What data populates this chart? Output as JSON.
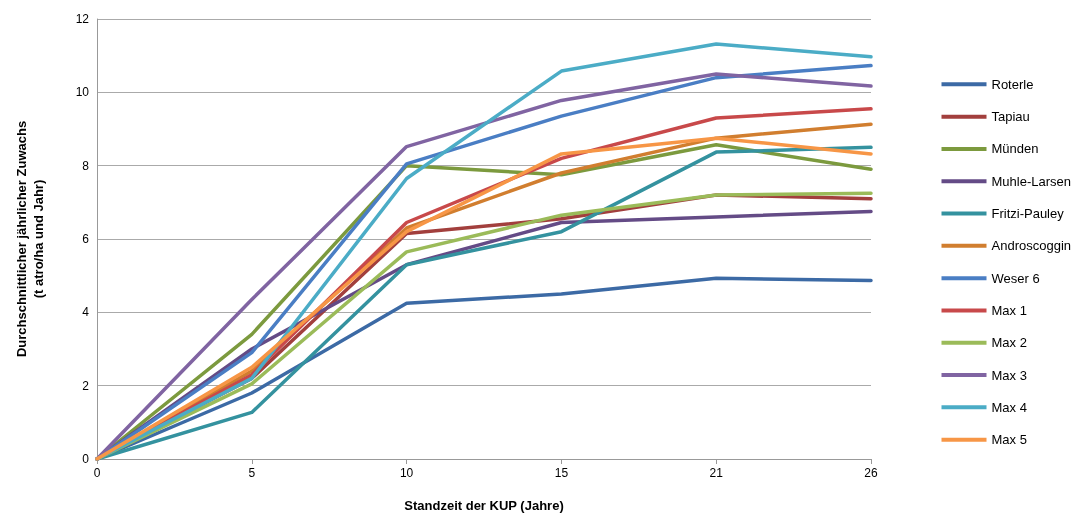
{
  "chart_data": {
    "type": "line",
    "xlabel": "Standzeit der KUP (Jahre)",
    "ylabel": "Durchschnittlicher jährlicher Zuwachs\n(t atro/ha und Jahr)",
    "categories": [
      "0",
      "5",
      "10",
      "15",
      "21",
      "26"
    ],
    "ylim": [
      0,
      12
    ],
    "yticks": [
      0,
      2,
      4,
      6,
      8,
      10,
      12
    ],
    "grid": "y",
    "legend": "right",
    "marker": "none",
    "line_style": "solid",
    "series": [
      {
        "name": "Roterle",
        "color": "#3c6aa5",
        "values": [
          0,
          1.8,
          4.25,
          4.5,
          4.93,
          4.87
        ]
      },
      {
        "name": "Tapiau",
        "color": "#a23f3d",
        "values": [
          0,
          2.2,
          6.15,
          6.55,
          7.2,
          7.1
        ]
      },
      {
        "name": "Münden",
        "color": "#7c9a3e",
        "values": [
          0,
          3.4,
          8.0,
          7.75,
          8.57,
          7.9
        ]
      },
      {
        "name": "Muhle-Larsen",
        "color": "#644b86",
        "values": [
          0,
          3.0,
          5.3,
          6.45,
          6.6,
          6.75
        ]
      },
      {
        "name": "Fritzi-Pauley",
        "color": "#34929f",
        "values": [
          0,
          1.27,
          5.3,
          6.2,
          8.37,
          8.5
        ]
      },
      {
        "name": "Androscoggin",
        "color": "#d17e2f",
        "values": [
          0,
          2.4,
          6.3,
          7.8,
          8.75,
          9.13
        ]
      },
      {
        "name": "Weser 6",
        "color": "#4a7ec4",
        "values": [
          0,
          2.9,
          8.05,
          9.35,
          10.4,
          10.73
        ]
      },
      {
        "name": "Max 1",
        "color": "#c8494a",
        "values": [
          0,
          2.3,
          6.45,
          8.2,
          9.3,
          9.55
        ]
      },
      {
        "name": "Max 2",
        "color": "#9bbb59",
        "values": [
          0,
          2.05,
          5.65,
          6.65,
          7.2,
          7.25
        ]
      },
      {
        "name": "Max 3",
        "color": "#8064a2",
        "values": [
          0,
          4.35,
          8.52,
          9.78,
          10.5,
          10.17
        ]
      },
      {
        "name": "Max 4",
        "color": "#4bacc6",
        "values": [
          0,
          2.2,
          7.65,
          10.58,
          11.32,
          10.97
        ]
      },
      {
        "name": "Max 5",
        "color": "#f79646",
        "values": [
          0,
          2.5,
          6.2,
          8.32,
          8.75,
          8.32
        ]
      }
    ]
  }
}
